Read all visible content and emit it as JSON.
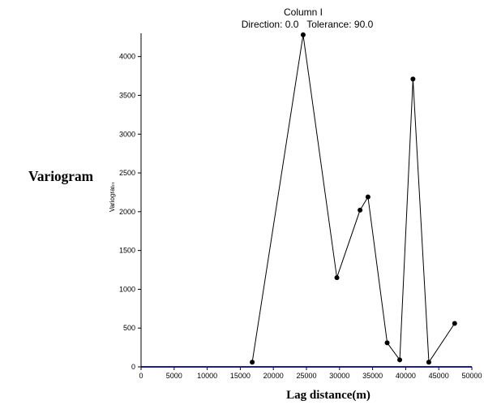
{
  "chart_data": {
    "type": "line",
    "title": "Column I",
    "subtitle": "Direction: 0.0   Tolerance: 90.0",
    "side_label": "Variogram",
    "ylabel": "Variogram",
    "xlabel": "Lag distance(m)",
    "xlim": [
      0,
      50000
    ],
    "ylim": [
      0,
      4300
    ],
    "x_ticks": [
      0,
      5000,
      10000,
      15000,
      20000,
      25000,
      30000,
      35000,
      40000,
      45000,
      50000
    ],
    "y_ticks": [
      0,
      500,
      1000,
      1500,
      2000,
      2500,
      3000,
      3500,
      4000
    ],
    "grid": false,
    "series": [
      {
        "color": "#000000",
        "x": [
          16800,
          24500,
          29600,
          33100,
          34300,
          37200,
          39100,
          41100,
          43500,
          47400
        ],
        "y": [
          60,
          4280,
          1150,
          2020,
          2190,
          310,
          90,
          3710,
          60,
          560
        ]
      }
    ],
    "baseline_color": "#1f1f8f"
  }
}
